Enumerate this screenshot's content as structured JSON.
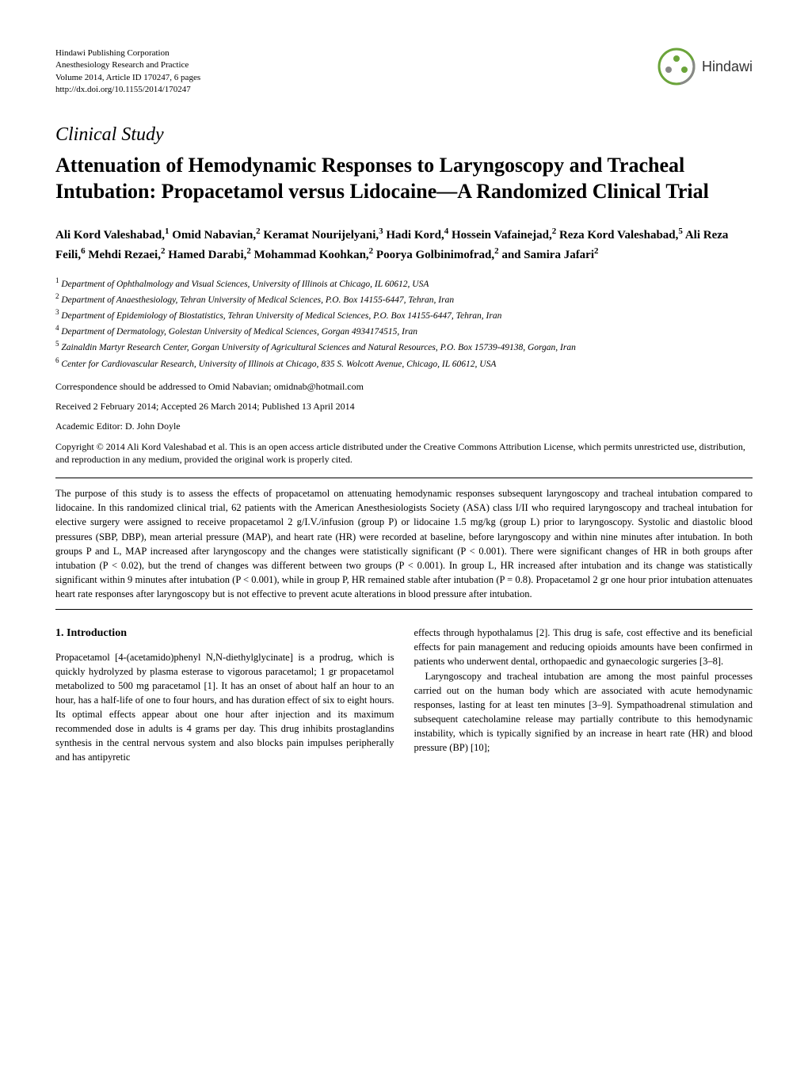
{
  "header": {
    "publisher": "Hindawi Publishing Corporation",
    "journal": "Anesthesiology Research and Practice",
    "volume": "Volume 2014, Article ID 170247, 6 pages",
    "doi": "http://dx.doi.org/10.1155/2014/170247",
    "logo_text": "Hindawi"
  },
  "article_type": "Clinical Study",
  "title": "Attenuation of Hemodynamic Responses to Laryngoscopy and Tracheal Intubation: Propacetamol versus Lidocaine—A Randomized Clinical Trial",
  "authors_html": "Ali Kord Valeshabad,<sup>1</sup> Omid Nabavian,<sup>2</sup> Keramat Nourijelyani,<sup>3</sup> Hadi Kord,<sup>4</sup> Hossein Vafainejad,<sup>2</sup> Reza Kord Valeshabad,<sup>5</sup> Ali Reza Feili,<sup>6</sup> Mehdi Rezaei,<sup>2</sup> Hamed Darabi,<sup>2</sup> Mohammad Koohkan,<sup>2</sup> Poorya Golbinimofrad,<sup>2</sup> and Samira Jafari<sup>2</sup>",
  "affiliations": [
    "Department of Ophthalmology and Visual Sciences, University of Illinois at Chicago, IL 60612, USA",
    "Department of Anaesthesiology, Tehran University of Medical Sciences, P.O. Box 14155-6447, Tehran, Iran",
    "Department of Epidemiology of Biostatistics, Tehran University of Medical Sciences, P.O. Box 14155-6447, Tehran, Iran",
    "Department of Dermatology, Golestan University of Medical Sciences, Gorgan 4934174515, Iran",
    "Zainaldin Martyr Research Center, Gorgan University of Agricultural Sciences and Natural Resources, P.O. Box 15739-49138, Gorgan, Iran",
    "Center for Cardiovascular Research, University of Illinois at Chicago, 835 S. Wolcott Avenue, Chicago, IL 60612, USA"
  ],
  "correspondence": "Correspondence should be addressed to Omid Nabavian; omidnab@hotmail.com",
  "dates": "Received 2 February 2014; Accepted 26 March 2014; Published 13 April 2014",
  "editor": "Academic Editor: D. John Doyle",
  "copyright": "Copyright © 2014 Ali Kord Valeshabad et al. This is an open access article distributed under the Creative Commons Attribution License, which permits unrestricted use, distribution, and reproduction in any medium, provided the original work is properly cited.",
  "abstract": "The purpose of this study is to assess the effects of propacetamol on attenuating hemodynamic responses subsequent laryngoscopy and tracheal intubation compared to lidocaine. In this randomized clinical trial, 62 patients with the American Anesthesiologists Society (ASA) class I/II who required laryngoscopy and tracheal intubation for elective surgery were assigned to receive propacetamol 2 g/I.V./infusion (group P) or lidocaine 1.5 mg/kg (group L) prior to laryngoscopy. Systolic and diastolic blood pressures (SBP, DBP), mean arterial pressure (MAP), and heart rate (HR) were recorded at baseline, before laryngoscopy and within nine minutes after intubation. In both groups P and L, MAP increased after laryngoscopy and the changes were statistically significant (P < 0.001). There were significant changes of HR in both groups after intubation (P < 0.02), but the trend of changes was different between two groups (P < 0.001). In group L, HR increased after intubation and its change was statistically significant within 9 minutes after intubation (P < 0.001), while in group P, HR remained stable after intubation (P = 0.8). Propacetamol 2 gr one hour prior intubation attenuates heart rate responses after laryngoscopy but is not effective to prevent acute alterations in blood pressure after intubation.",
  "section_heading": "1. Introduction",
  "column1_p1": "Propacetamol [4-(acetamido)phenyl N,N-diethylglycinate] is a prodrug, which is quickly hydrolyzed by plasma esterase to vigorous paracetamol; 1 gr propacetamol metabolized to 500 mg paracetamol [1]. It has an onset of about half an hour to an hour, has a half-life of one to four hours, and has duration effect of six to eight hours. Its optimal effects appear about one hour after injection and its maximum recommended dose in adults is 4 grams per day. This drug inhibits prostaglandins synthesis in the central nervous system and also blocks pain impulses peripherally and has antipyretic",
  "column2_p1": "effects through hypothalamus [2]. This drug is safe, cost effective and its beneficial effects for pain management and reducing opioids amounts have been confirmed in patients who underwent dental, orthopaedic and gynaecologic surgeries [3–8].",
  "column2_p2": "Laryngoscopy and tracheal intubation are among the most painful processes carried out on the human body which are associated with acute hemodynamic responses, lasting for at least ten minutes [3–9]. Sympathoadrenal stimulation and subsequent catecholamine release may partially contribute to this hemodynamic instability, which is typically signified by an increase in heart rate (HR) and blood pressure (BP) [10];",
  "colors": {
    "text": "#000000",
    "background": "#ffffff",
    "logo_green": "#6ba43a",
    "logo_gray": "#888888"
  }
}
